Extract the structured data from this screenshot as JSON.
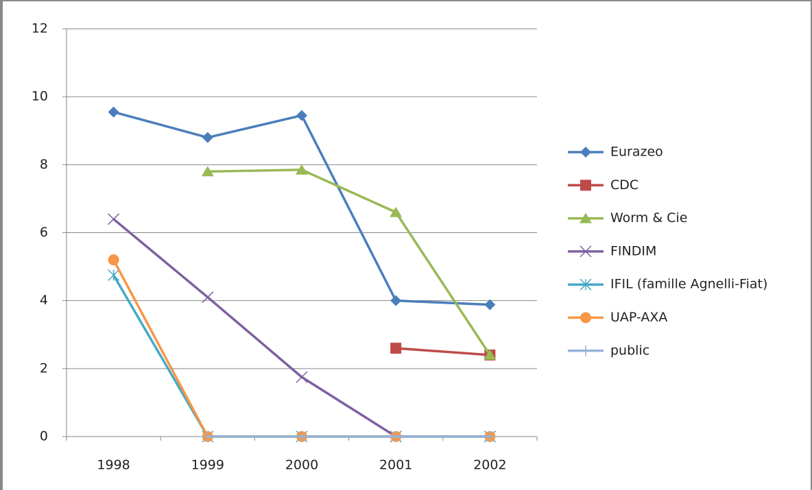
{
  "chart_data": {
    "type": "line",
    "categories": [
      "1998",
      "1999",
      "2000",
      "2001",
      "2002"
    ],
    "ylim": [
      0,
      12
    ],
    "yticks": [
      0,
      2,
      4,
      6,
      8,
      10,
      12
    ],
    "grid": true,
    "legend": "right",
    "series": [
      {
        "name": "Eurazeo",
        "color": "#4a7ebb",
        "marker": "diamond",
        "values": [
          9.55,
          8.8,
          9.45,
          4.0,
          3.88
        ]
      },
      {
        "name": "CDC",
        "color": "#be4b48",
        "marker": "square",
        "values": [
          null,
          null,
          null,
          2.6,
          2.4
        ]
      },
      {
        "name": "Worm & Cie",
        "color": "#98b954",
        "marker": "triangle",
        "values": [
          null,
          7.8,
          7.85,
          6.6,
          2.4
        ]
      },
      {
        "name": "FINDIM",
        "color": "#7d60a0",
        "marker": "x",
        "values": [
          6.4,
          4.1,
          1.75,
          0,
          0
        ]
      },
      {
        "name": "IFIL (famille Agnelli-Fiat)",
        "color": "#46aac5",
        "marker": "asterisk",
        "values": [
          4.75,
          0,
          0,
          0,
          0
        ]
      },
      {
        "name": "UAP-AXA",
        "color": "#f79646",
        "marker": "circle",
        "values": [
          5.2,
          0,
          0,
          0,
          0
        ]
      },
      {
        "name": "public",
        "color": "#95b3d7",
        "marker": "plus",
        "values": [
          null,
          0,
          0,
          0,
          0
        ]
      }
    ]
  }
}
